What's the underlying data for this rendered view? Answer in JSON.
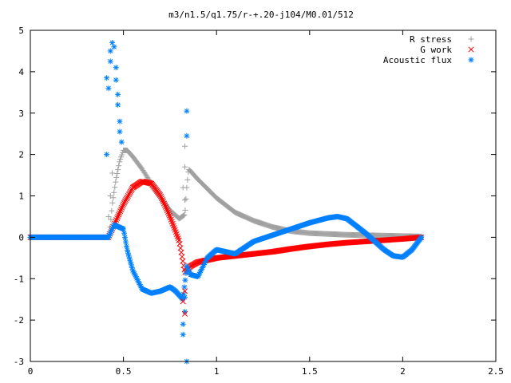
{
  "chart_data": {
    "type": "scatter",
    "title": "m3/n1.5/q1.75/r-+.20-j104/M0.01/512",
    "xlabel": "",
    "ylabel": "",
    "xlim": [
      0,
      2.5
    ],
    "ylim": [
      -3,
      5
    ],
    "x_ticks": [
      "0",
      "0.5",
      "1",
      "1.5",
      "2",
      "2.5"
    ],
    "y_ticks": [
      "5",
      "4",
      "3",
      "2",
      "1",
      "0",
      "-1",
      "-2",
      "-3"
    ],
    "grid": false,
    "legend_position": "top-right",
    "series": [
      {
        "name": "R stress",
        "marker": "plus",
        "color": "#a0a0a0",
        "points": [
          [
            0,
            0
          ],
          [
            0.1,
            0
          ],
          [
            0.2,
            0
          ],
          [
            0.3,
            0
          ],
          [
            0.42,
            0
          ],
          [
            0.43,
            0.3
          ],
          [
            0.44,
            0.8
          ],
          [
            0.46,
            1.4
          ],
          [
            0.48,
            1.85
          ],
          [
            0.5,
            2.1
          ],
          [
            0.52,
            2.1
          ],
          [
            0.55,
            1.95
          ],
          [
            0.6,
            1.65
          ],
          [
            0.65,
            1.3
          ],
          [
            0.7,
            0.95
          ],
          [
            0.75,
            0.65
          ],
          [
            0.8,
            0.45
          ],
          [
            0.83,
            0.55
          ],
          [
            0.84,
            1.2
          ],
          [
            0.85,
            1.65
          ],
          [
            0.9,
            1.4
          ],
          [
            1.0,
            0.95
          ],
          [
            1.1,
            0.6
          ],
          [
            1.2,
            0.4
          ],
          [
            1.3,
            0.25
          ],
          [
            1.4,
            0.15
          ],
          [
            1.5,
            0.1
          ],
          [
            1.7,
            0.06
          ],
          [
            1.9,
            0.04
          ],
          [
            2.1,
            0.02
          ]
        ]
      },
      {
        "name": "G work",
        "marker": "cross",
        "color": "#ff0000",
        "points": [
          [
            0,
            0
          ],
          [
            0.1,
            0
          ],
          [
            0.2,
            0
          ],
          [
            0.3,
            0
          ],
          [
            0.42,
            0
          ],
          [
            0.45,
            0.3
          ],
          [
            0.5,
            0.8
          ],
          [
            0.55,
            1.2
          ],
          [
            0.6,
            1.35
          ],
          [
            0.65,
            1.3
          ],
          [
            0.7,
            1.0
          ],
          [
            0.75,
            0.5
          ],
          [
            0.8,
            -0.1
          ],
          [
            0.83,
            -0.85
          ],
          [
            0.86,
            -0.7
          ],
          [
            0.9,
            -0.6
          ],
          [
            1.0,
            -0.5
          ],
          [
            1.1,
            -0.45
          ],
          [
            1.2,
            -0.4
          ],
          [
            1.3,
            -0.35
          ],
          [
            1.4,
            -0.28
          ],
          [
            1.5,
            -0.22
          ],
          [
            1.6,
            -0.17
          ],
          [
            1.7,
            -0.13
          ],
          [
            1.8,
            -0.1
          ],
          [
            1.9,
            -0.07
          ],
          [
            2.0,
            -0.04
          ],
          [
            2.1,
            0
          ]
        ]
      },
      {
        "name": "Acoustic flux",
        "marker": "star",
        "color": "#0080ff",
        "points": [
          [
            0,
            0
          ],
          [
            0.1,
            0
          ],
          [
            0.2,
            0
          ],
          [
            0.3,
            0
          ],
          [
            0.42,
            0
          ],
          [
            0.45,
            0.3
          ],
          [
            0.5,
            0.2
          ],
          [
            0.52,
            -0.3
          ],
          [
            0.55,
            -0.8
          ],
          [
            0.6,
            -1.25
          ],
          [
            0.65,
            -1.35
          ],
          [
            0.7,
            -1.3
          ],
          [
            0.75,
            -1.2
          ],
          [
            0.78,
            -1.3
          ],
          [
            0.82,
            -1.5
          ],
          [
            0.84,
            -0.7
          ],
          [
            0.86,
            -0.9
          ],
          [
            0.9,
            -0.95
          ],
          [
            0.95,
            -0.5
          ],
          [
            1.0,
            -0.3
          ],
          [
            1.1,
            -0.4
          ],
          [
            1.2,
            -0.1
          ],
          [
            1.3,
            0.05
          ],
          [
            1.4,
            0.2
          ],
          [
            1.5,
            0.35
          ],
          [
            1.6,
            0.47
          ],
          [
            1.65,
            0.5
          ],
          [
            1.7,
            0.45
          ],
          [
            1.8,
            0.1
          ],
          [
            1.9,
            -0.3
          ],
          [
            1.95,
            -0.45
          ],
          [
            2.0,
            -0.48
          ],
          [
            2.05,
            -0.3
          ],
          [
            2.1,
            0
          ]
        ],
        "isolated_points": [
          [
            0.41,
            2.0
          ],
          [
            0.41,
            3.85
          ],
          [
            0.42,
            3.6
          ],
          [
            0.43,
            4.25
          ],
          [
            0.43,
            4.5
          ],
          [
            0.44,
            4.7
          ],
          [
            0.45,
            4.6
          ],
          [
            0.46,
            4.1
          ],
          [
            0.46,
            3.8
          ],
          [
            0.47,
            3.45
          ],
          [
            0.47,
            3.2
          ],
          [
            0.48,
            2.8
          ],
          [
            0.48,
            2.55
          ],
          [
            0.49,
            2.3
          ],
          [
            0.84,
            3.05
          ],
          [
            0.84,
            2.45
          ],
          [
            0.83,
            -1.45
          ],
          [
            0.83,
            -1.8
          ],
          [
            0.82,
            -2.1
          ],
          [
            0.82,
            -2.35
          ],
          [
            0.84,
            -3.0
          ]
        ]
      },
      {
        "name": "",
        "marker": "plus",
        "color": "#a0a0a0",
        "isolated_points": [
          [
            0.42,
            0.5
          ],
          [
            0.43,
            1.0
          ],
          [
            0.44,
            1.55
          ],
          [
            0.83,
            2.2
          ],
          [
            0.83,
            1.7
          ],
          [
            0.82,
            1.2
          ],
          [
            0.83,
            0.9
          ]
        ]
      },
      {
        "name": "",
        "marker": "cross",
        "color": "#ff0000",
        "isolated_points": [
          [
            0.83,
            -1.3
          ],
          [
            0.82,
            -1.55
          ],
          [
            0.83,
            -1.85
          ]
        ]
      }
    ]
  }
}
